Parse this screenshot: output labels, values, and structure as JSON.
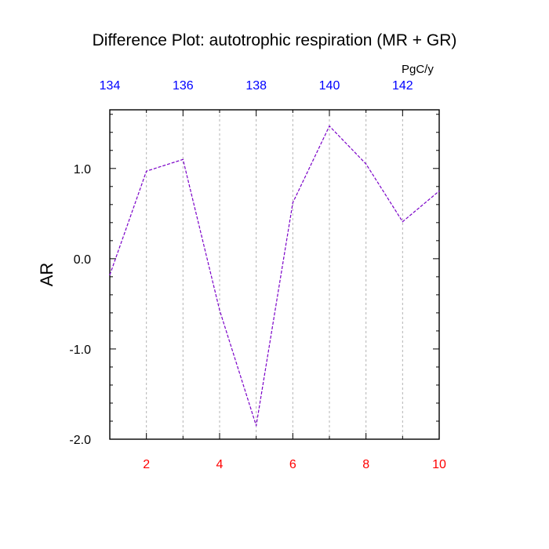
{
  "chart_data": {
    "type": "line",
    "title": "Difference Plot: autotrophic respiration (MR + GR)",
    "ylabel": "AR",
    "top_axis_unit": "PgC/y",
    "x": [
      1,
      2,
      3,
      4,
      5,
      6,
      7,
      8,
      9,
      10
    ],
    "series": [
      {
        "values": [
          -0.18,
          0.97,
          1.1,
          -0.57,
          -1.85,
          0.62,
          1.47,
          1.05,
          0.41,
          0.75
        ],
        "color": "#7a00c8",
        "style": "dashed"
      }
    ],
    "xlim": [
      1,
      10
    ],
    "ylim": [
      -2.0,
      1.65
    ],
    "bottom_ticks": [
      "2",
      "4",
      "6",
      "8",
      "10"
    ],
    "bottom_tick_values": [
      2,
      4,
      6,
      8,
      10
    ],
    "bottom_tick_color": "#ff0000",
    "left_ticks": [
      "1.0",
      "0.0",
      "-1.0",
      "-2.0"
    ],
    "left_tick_values": [
      1.0,
      0.0,
      -1.0,
      -2.0
    ],
    "top_ticks": [
      "134",
      "136",
      "138",
      "140",
      "142"
    ],
    "top_tick_positions": [
      1,
      3,
      5,
      7,
      9
    ],
    "top_tick_color": "#0000ff",
    "grid": "vertical-dashed"
  }
}
